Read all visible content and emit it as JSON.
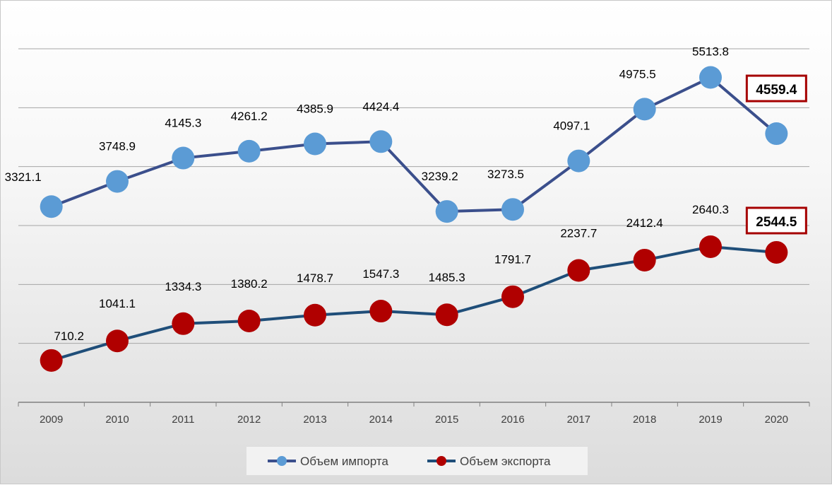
{
  "chart_data": {
    "type": "line",
    "title": "",
    "xlabel": "",
    "ylabel": "",
    "categories": [
      "2009",
      "2010",
      "2011",
      "2012",
      "2013",
      "2014",
      "2015",
      "2016",
      "2017",
      "2018",
      "2019",
      "2020"
    ],
    "series": [
      {
        "name": "Объем импорта",
        "values": [
          3321.1,
          3748.9,
          4145.3,
          4261.2,
          4385.9,
          4424.4,
          3239.2,
          3273.5,
          4097.1,
          4975.5,
          5513.8,
          4559.4
        ],
        "labels": [
          "3321.1",
          "3748.9",
          "4145.3",
          "4261.2",
          "4385.9",
          "4424.4",
          "3239.2",
          "3273.5",
          "4097.1",
          "4975.5",
          "5513.8",
          "4559.4"
        ],
        "line_color": "#3b4f8c",
        "marker_color": "#5b9bd5",
        "highlight_last": true
      },
      {
        "name": "Объем экспорта",
        "values": [
          710.2,
          1041.1,
          1334.3,
          1380.2,
          1478.7,
          1547.3,
          1485.3,
          1791.7,
          2237.7,
          2412.4,
          2640.3,
          2544.5
        ],
        "labels": [
          "710.2",
          "1041.1",
          "1334.3",
          "1380.2",
          "1478.7",
          "1547.3",
          "1485.3",
          "1791.7",
          "2237.7",
          "2412.4",
          "2640.3",
          "2544.5"
        ],
        "line_color": "#1f4e79",
        "marker_color": "#b00000",
        "highlight_last": true
      }
    ],
    "ylim": [
      0,
      6000
    ],
    "y_axis_labels_shown": false,
    "grid": true,
    "legend": "bottom-center",
    "highlight_box_color": "#a50000"
  }
}
